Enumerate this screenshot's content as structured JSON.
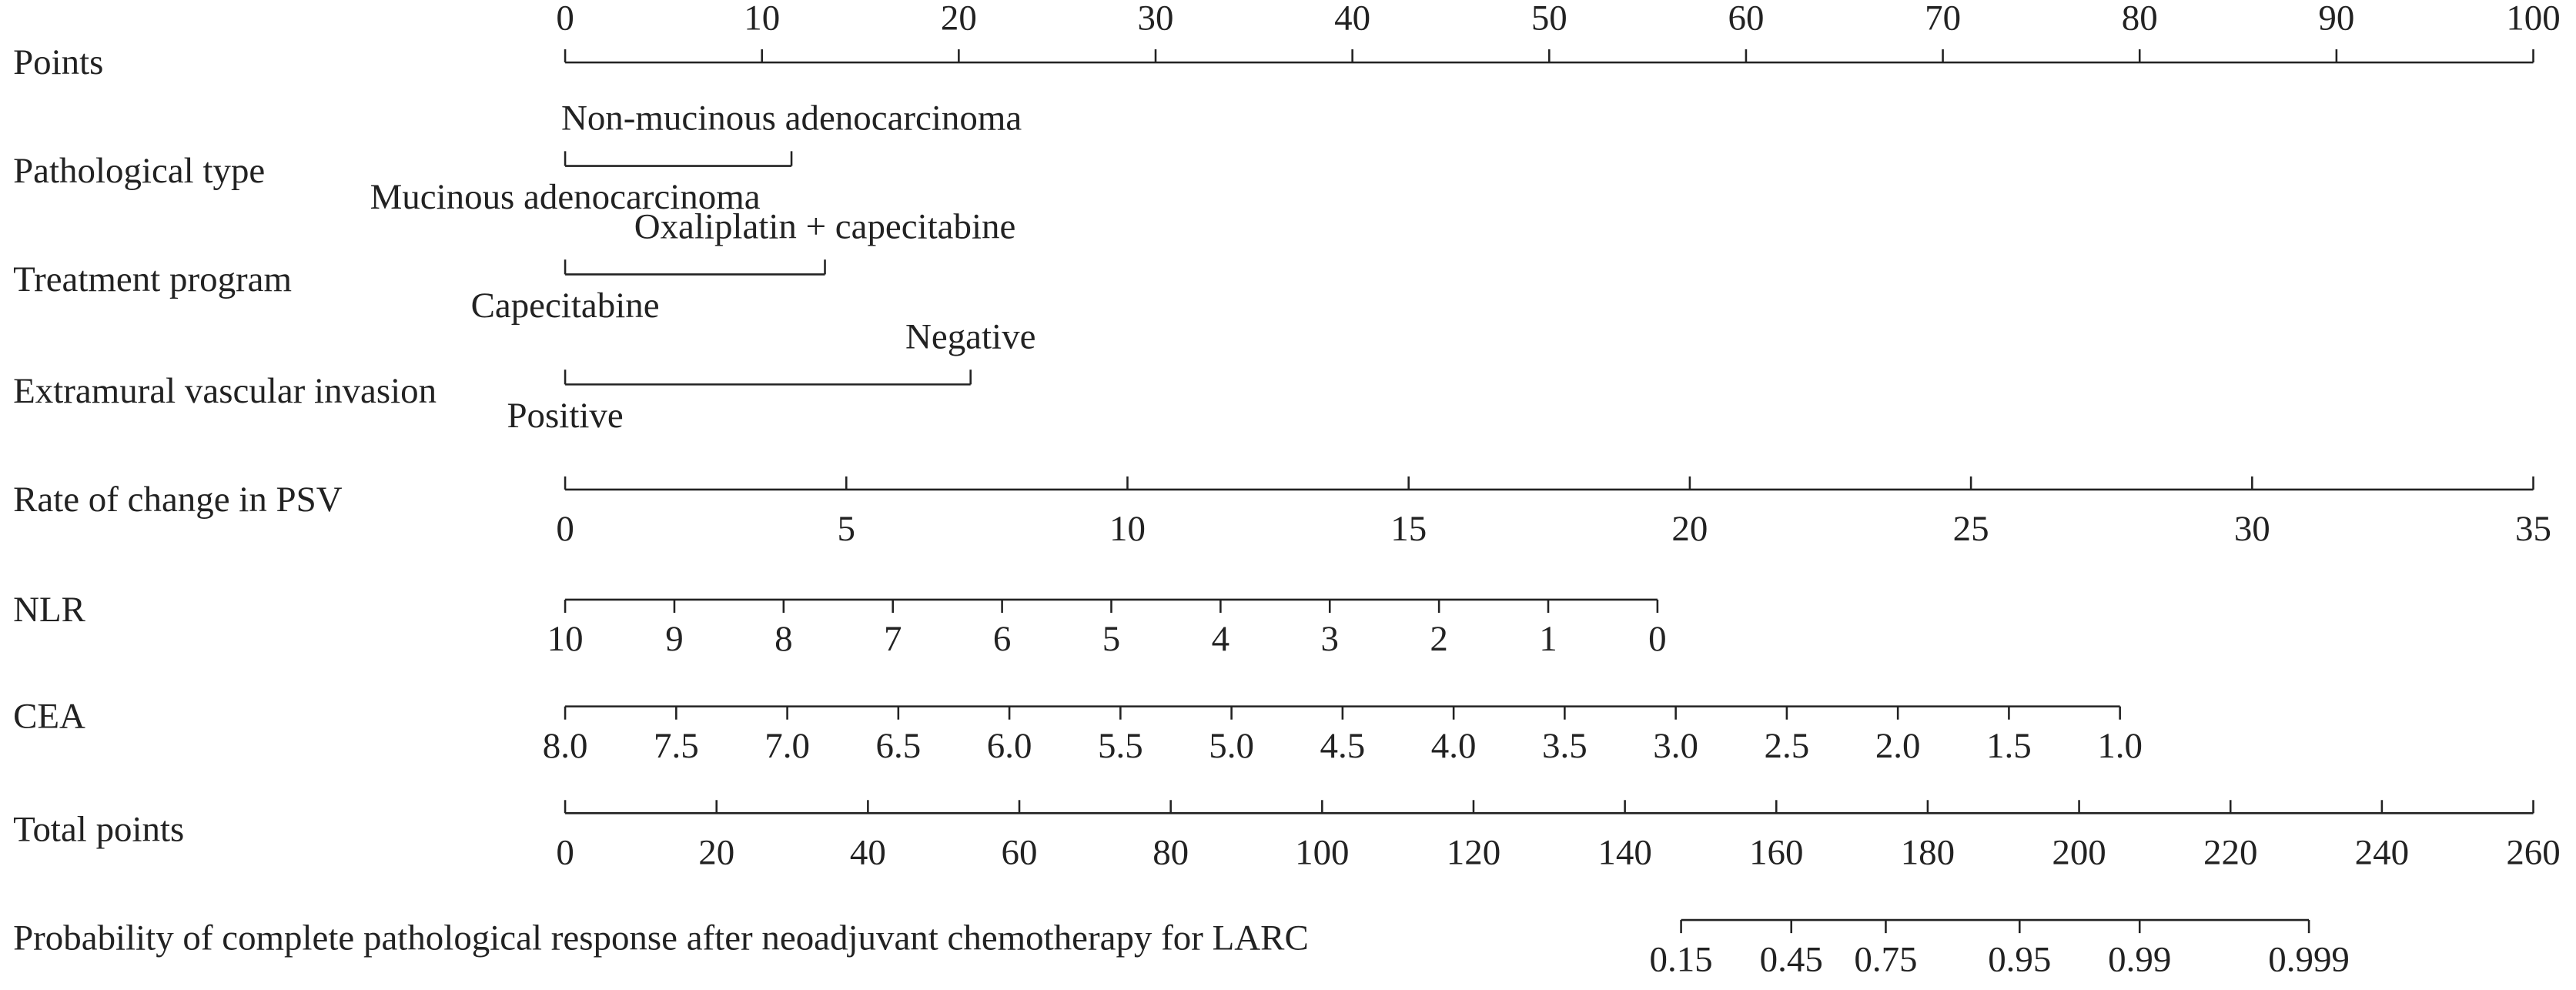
{
  "chart_data": {
    "type": "nomogram",
    "rows": [
      {
        "label": "Points",
        "ticks": [
          0,
          10,
          20,
          30,
          40,
          50,
          60,
          70,
          80,
          90,
          100
        ],
        "range": [
          0,
          100
        ]
      },
      {
        "label": "Pathological type",
        "levels": [
          {
            "label": "Mucinous adenocarcinoma",
            "points": 0
          },
          {
            "label": "Non-mucinous adenocarcinoma",
            "points": 11.5
          }
        ]
      },
      {
        "label": "Treatment program",
        "levels": [
          {
            "label": "Capecitabine",
            "points": 0
          },
          {
            "label": "Oxaliplatin + capecitabine",
            "points": 13.2
          }
        ]
      },
      {
        "label": "Extramural vascular invasion",
        "levels": [
          {
            "label": "Positive",
            "points": 0
          },
          {
            "label": "Negative",
            "points": 20.6
          }
        ]
      },
      {
        "label": "Rate of change in PSV",
        "ticks": [
          0,
          5,
          10,
          15,
          20,
          25,
          30,
          35
        ],
        "range": [
          0,
          100
        ]
      },
      {
        "label": "NLR",
        "ticks": [
          10,
          9,
          8,
          7,
          6,
          5,
          4,
          3,
          2,
          1,
          0
        ],
        "range": [
          0,
          55.5
        ]
      },
      {
        "label": "CEA",
        "ticks": [
          {
            "value": 8,
            "label": "8.0"
          },
          7.5,
          {
            "value": 7,
            "label": "7.0"
          },
          6.5,
          {
            "value": 6,
            "label": "6.0"
          },
          5.5,
          {
            "value": 5,
            "label": "5.0"
          },
          4.5,
          {
            "value": 4,
            "label": "4.0"
          },
          3.5,
          {
            "value": 3,
            "label": "3.0"
          },
          2.5,
          {
            "value": 2,
            "label": "2.0"
          },
          1.5,
          {
            "value": 1,
            "label": "1.0"
          }
        ],
        "range": [
          0,
          79.0
        ]
      },
      {
        "label": "Total points",
        "ticks": [
          0,
          20,
          40,
          60,
          80,
          100,
          120,
          140,
          160,
          180,
          200,
          220,
          240,
          260
        ],
        "range": [
          0,
          100
        ]
      },
      {
        "label": "Probability of complete pathological response after neoadjuvant chemotherapy for LARC",
        "ticks": [
          0.15,
          0.45,
          0.75,
          0.95,
          0.99,
          0.999
        ],
        "tick_points": [
          56.7,
          62.3,
          67.1,
          73.9,
          80.0,
          88.6
        ]
      }
    ]
  }
}
